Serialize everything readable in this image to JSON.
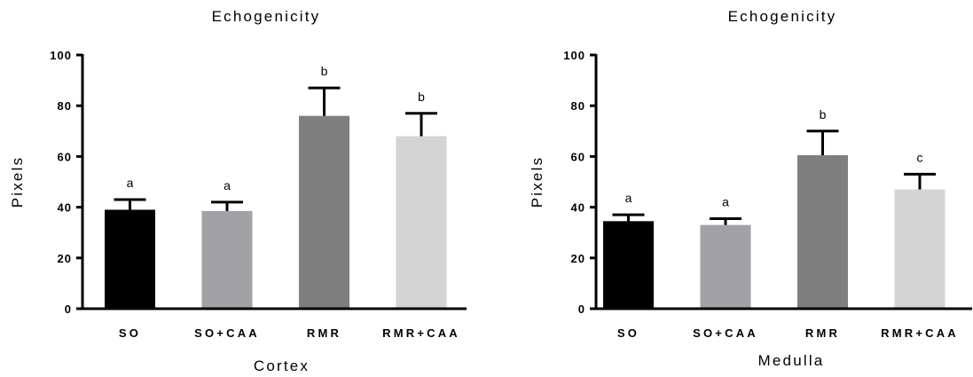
{
  "chart_data": [
    {
      "type": "bar",
      "title": "Echogenicity",
      "xlabel": "Cortex",
      "ylabel": "Pixels",
      "ylim": [
        0,
        100
      ],
      "yticks": [
        0,
        20,
        40,
        60,
        80,
        100
      ],
      "grid": false,
      "categories": [
        "SO",
        "SO+CAA",
        "RMR",
        "RMR+CAA"
      ],
      "values": [
        39,
        38.5,
        76,
        68
      ],
      "error_upper": [
        43,
        42,
        87,
        77
      ],
      "significance_letters": [
        "a",
        "a",
        "b",
        "b"
      ],
      "bar_colors": [
        "#000000",
        "#a1a1a6",
        "#7f7f7f",
        "#d4d4d4"
      ]
    },
    {
      "type": "bar",
      "title": "Echogenicity",
      "xlabel": "Medulla",
      "ylabel": "Pixels",
      "ylim": [
        0,
        100
      ],
      "yticks": [
        0,
        20,
        40,
        60,
        80,
        100
      ],
      "grid": false,
      "categories": [
        "SO",
        "SO+CAA",
        "RMR",
        "RMR+CAA"
      ],
      "values": [
        34.5,
        33,
        60.5,
        47
      ],
      "error_upper": [
        37,
        35.5,
        70,
        53
      ],
      "significance_letters": [
        "a",
        "a",
        "b",
        "c"
      ],
      "bar_colors": [
        "#000000",
        "#a1a1a6",
        "#7f7f7f",
        "#d4d4d4"
      ]
    }
  ]
}
